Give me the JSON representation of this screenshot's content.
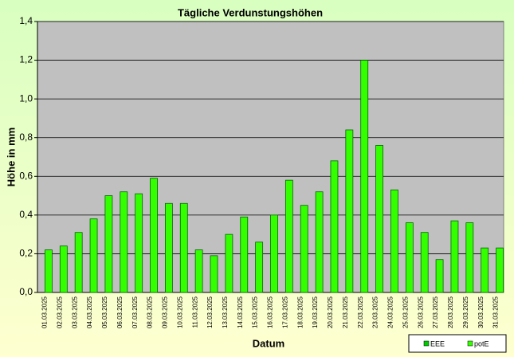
{
  "chart_data": {
    "type": "bar",
    "title": "Tägliche Verdunstungshöhen",
    "x_label": "Datum",
    "y_label": "Höhe in mm",
    "categories": [
      "01.03.2025",
      "02.03.2025",
      "03.03.2025",
      "04.03.2025",
      "05.03.2025",
      "06.03.2025",
      "07.03.2025",
      "08.03.2025",
      "09.03.2025",
      "10.03.2025",
      "11.03.2025",
      "12.03.2025",
      "13.03.2025",
      "14.03.2025",
      "15.03.2025",
      "16.03.2025",
      "17.03.2025",
      "18.03.2025",
      "19.03.2025",
      "20.03.2025",
      "21.03.2025",
      "22.03.2025",
      "23.03.2025",
      "24.03.2025",
      "25.03.2025",
      "26.03.2025",
      "27.03.2025",
      "28.03.2025",
      "29.03.2025",
      "30.03.2025",
      "31.03.2025"
    ],
    "series": [
      {
        "name": "EEE",
        "color": "#00cc00",
        "values": [
          null,
          null,
          null,
          null,
          null,
          null,
          null,
          null,
          null,
          null,
          null,
          null,
          null,
          null,
          null,
          null,
          null,
          null,
          null,
          null,
          null,
          null,
          null,
          null,
          null,
          null,
          null,
          null,
          null,
          null,
          null
        ]
      },
      {
        "name": "potE",
        "color": "#33ff00",
        "values": [
          0.22,
          0.24,
          0.31,
          0.38,
          0.5,
          0.52,
          0.51,
          0.59,
          0.46,
          0.46,
          0.22,
          0.19,
          0.3,
          0.39,
          0.26,
          0.4,
          0.58,
          0.45,
          0.52,
          0.68,
          0.84,
          1.2,
          0.76,
          0.53,
          0.36,
          0.31,
          0.17,
          0.37,
          0.36,
          0.23,
          0.23
        ]
      }
    ],
    "ylim": [
      0,
      1.4
    ],
    "yticks": [
      {
        "value": 0,
        "label": "0,0"
      },
      {
        "value": 0.2,
        "label": "0,2"
      },
      {
        "value": 0.4,
        "label": "0,4"
      },
      {
        "value": 0.6,
        "label": "0,6"
      },
      {
        "value": 0.8,
        "label": "0,8"
      },
      {
        "value": 1,
        "label": "1,0"
      },
      {
        "value": 1.2,
        "label": "1,2"
      },
      {
        "value": 1.4,
        "label": "1,4"
      }
    ],
    "grid": true
  }
}
